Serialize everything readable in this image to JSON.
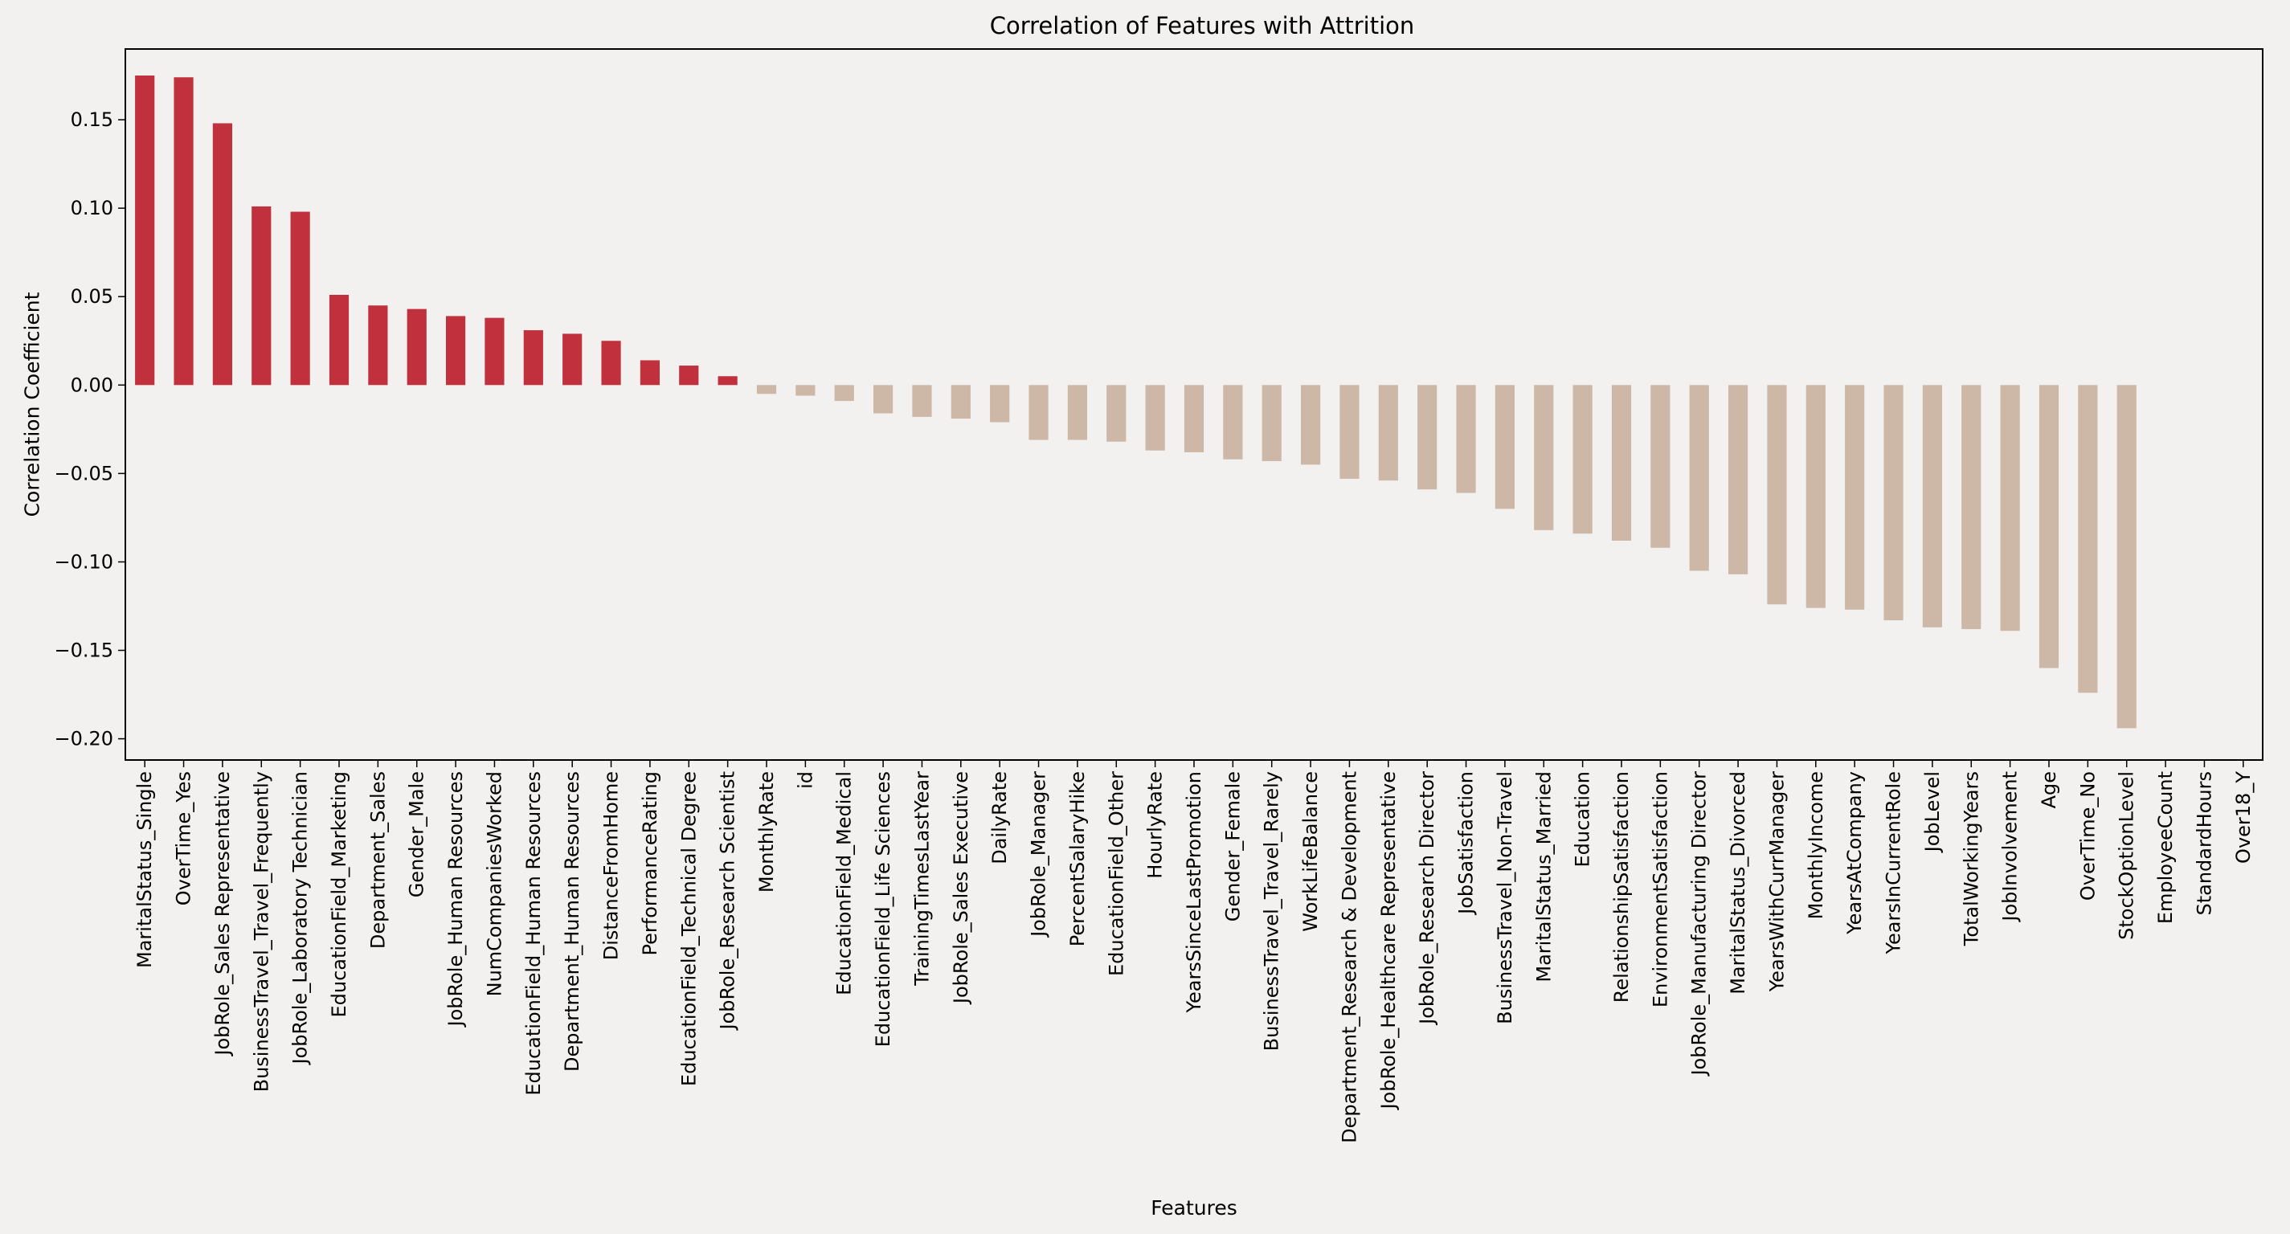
{
  "chart_data": {
    "type": "bar",
    "title": "Correlation of Features with Attrition",
    "xlabel": "Features",
    "ylabel": "Correlation Coefficient",
    "ylim": [
      -0.212,
      0.19
    ],
    "yticks": [
      0.15,
      0.1,
      0.05,
      0.0,
      -0.05,
      -0.1,
      -0.15,
      -0.2
    ],
    "ytick_labels": [
      "0.15",
      "0.10",
      "0.05",
      "0.00",
      "−0.05",
      "−0.10",
      "−0.15",
      "−0.20"
    ],
    "grid": false,
    "colors": {
      "positive": "#c0303d",
      "negative": "#cdb8a7",
      "background": "#f3f1ef",
      "axes": "#000000"
    },
    "categories": [
      "MaritalStatus_Single",
      "OverTime_Yes",
      "JobRole_Sales Representative",
      "BusinessTravel_Travel_Frequently",
      "JobRole_Laboratory Technician",
      "EducationField_Marketing",
      "Department_Sales",
      "Gender_Male",
      "JobRole_Human Resources",
      "NumCompaniesWorked",
      "EducationField_Human Resources",
      "Department_Human Resources",
      "DistanceFromHome",
      "PerformanceRating",
      "EducationField_Technical Degree",
      "JobRole_Research Scientist",
      "MonthlyRate",
      "id",
      "EducationField_Medical",
      "EducationField_Life Sciences",
      "TrainingTimesLastYear",
      "JobRole_Sales Executive",
      "DailyRate",
      "JobRole_Manager",
      "PercentSalaryHike",
      "EducationField_Other",
      "HourlyRate",
      "YearsSinceLastPromotion",
      "Gender_Female",
      "BusinessTravel_Travel_Rarely",
      "WorkLifeBalance",
      "Department_Research & Development",
      "JobRole_Healthcare Representative",
      "JobRole_Research Director",
      "JobSatisfaction",
      "BusinessTravel_Non-Travel",
      "MaritalStatus_Married",
      "Education",
      "RelationshipSatisfaction",
      "EnvironmentSatisfaction",
      "JobRole_Manufacturing Director",
      "MaritalStatus_Divorced",
      "YearsWithCurrManager",
      "MonthlyIncome",
      "YearsAtCompany",
      "YearsInCurrentRole",
      "JobLevel",
      "TotalWorkingYears",
      "JobInvolvement",
      "Age",
      "OverTime_No",
      "StockOptionLevel",
      "EmployeeCount",
      "StandardHours",
      "Over18_Y"
    ],
    "values": [
      0.175,
      0.174,
      0.148,
      0.101,
      0.098,
      0.051,
      0.045,
      0.043,
      0.039,
      0.038,
      0.031,
      0.029,
      0.025,
      0.014,
      0.011,
      0.005,
      -0.005,
      -0.006,
      -0.009,
      -0.016,
      -0.018,
      -0.019,
      -0.021,
      -0.031,
      -0.031,
      -0.032,
      -0.037,
      -0.038,
      -0.042,
      -0.043,
      -0.045,
      -0.053,
      -0.054,
      -0.059,
      -0.061,
      -0.07,
      -0.082,
      -0.084,
      -0.088,
      -0.092,
      -0.105,
      -0.107,
      -0.124,
      -0.126,
      -0.127,
      -0.133,
      -0.137,
      -0.138,
      -0.139,
      -0.16,
      -0.174,
      -0.194,
      0.0,
      0.0,
      0.0
    ]
  }
}
